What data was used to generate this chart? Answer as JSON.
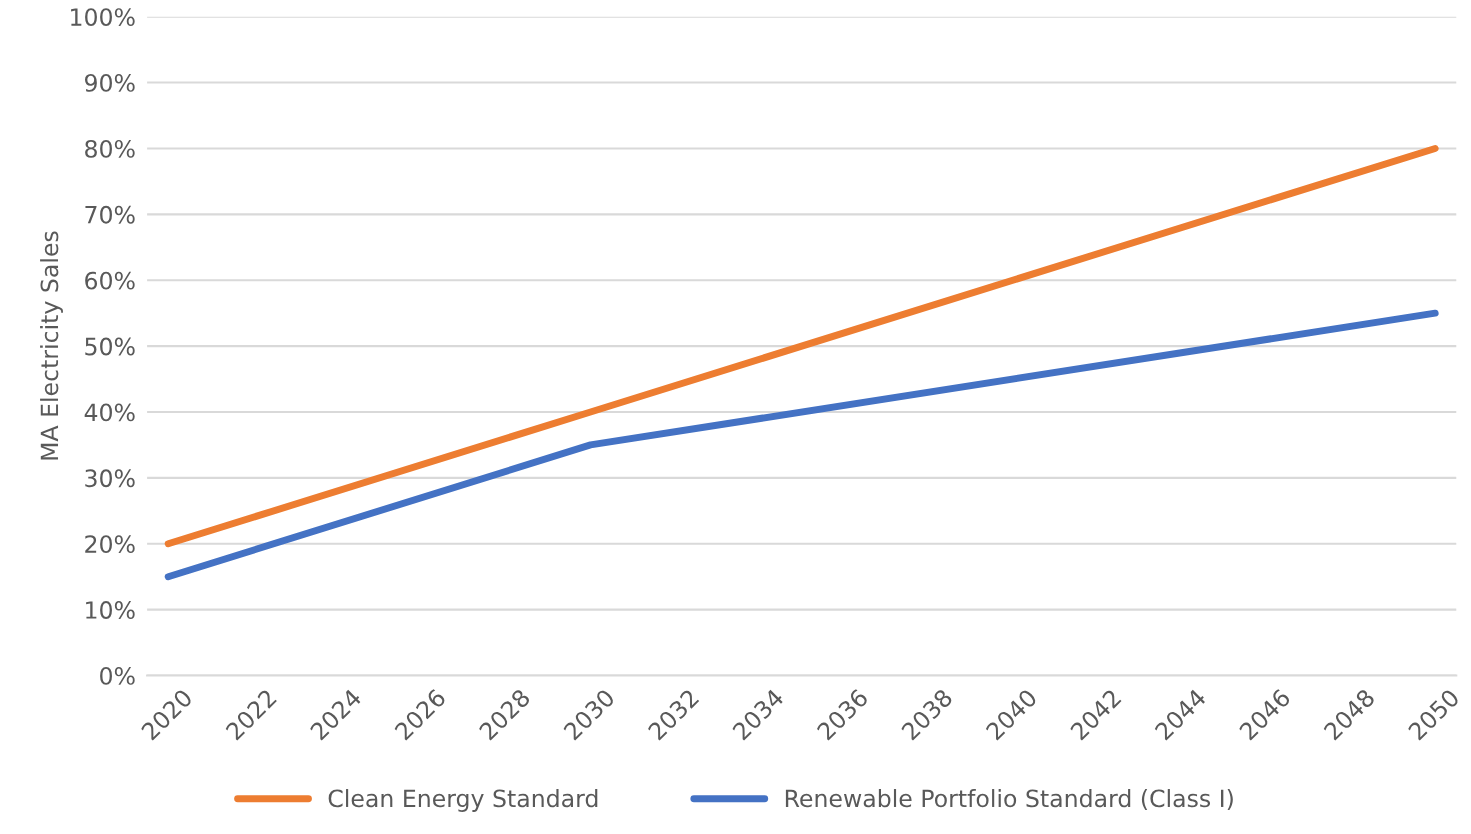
{
  "chart_data": {
    "type": "line",
    "ylabel": "MA Electricity Sales",
    "x": [
      2020,
      2030,
      2050
    ],
    "series": [
      {
        "name": "Clean Energy Standard",
        "color": "#ed7d31",
        "values": [
          20,
          40,
          80
        ]
      },
      {
        "name": "Renewable Portfolio Standard (Class I)",
        "color": "#4472c4",
        "values": [
          15,
          35,
          55
        ]
      }
    ],
    "xlim": [
      2019.5,
      2050.5
    ],
    "xticks": [
      2020,
      2022,
      2024,
      2026,
      2028,
      2030,
      2032,
      2034,
      2036,
      2038,
      2040,
      2042,
      2044,
      2046,
      2048,
      2050
    ],
    "ylim": [
      0,
      100
    ],
    "yticks": [
      {
        "value": 0,
        "label": "0%"
      },
      {
        "value": 10,
        "label": "10%"
      },
      {
        "value": 20,
        "label": "20%"
      },
      {
        "value": 30,
        "label": "30%"
      },
      {
        "value": 40,
        "label": "40%"
      },
      {
        "value": 50,
        "label": "50%"
      },
      {
        "value": 60,
        "label": "60%"
      },
      {
        "value": 70,
        "label": "70%"
      },
      {
        "value": 80,
        "label": "80%"
      },
      {
        "value": 90,
        "label": "90%"
      },
      {
        "value": 100,
        "label": "100%"
      }
    ],
    "grid": "y",
    "legend": "bottom",
    "marker": "none",
    "line_style": "solid"
  }
}
